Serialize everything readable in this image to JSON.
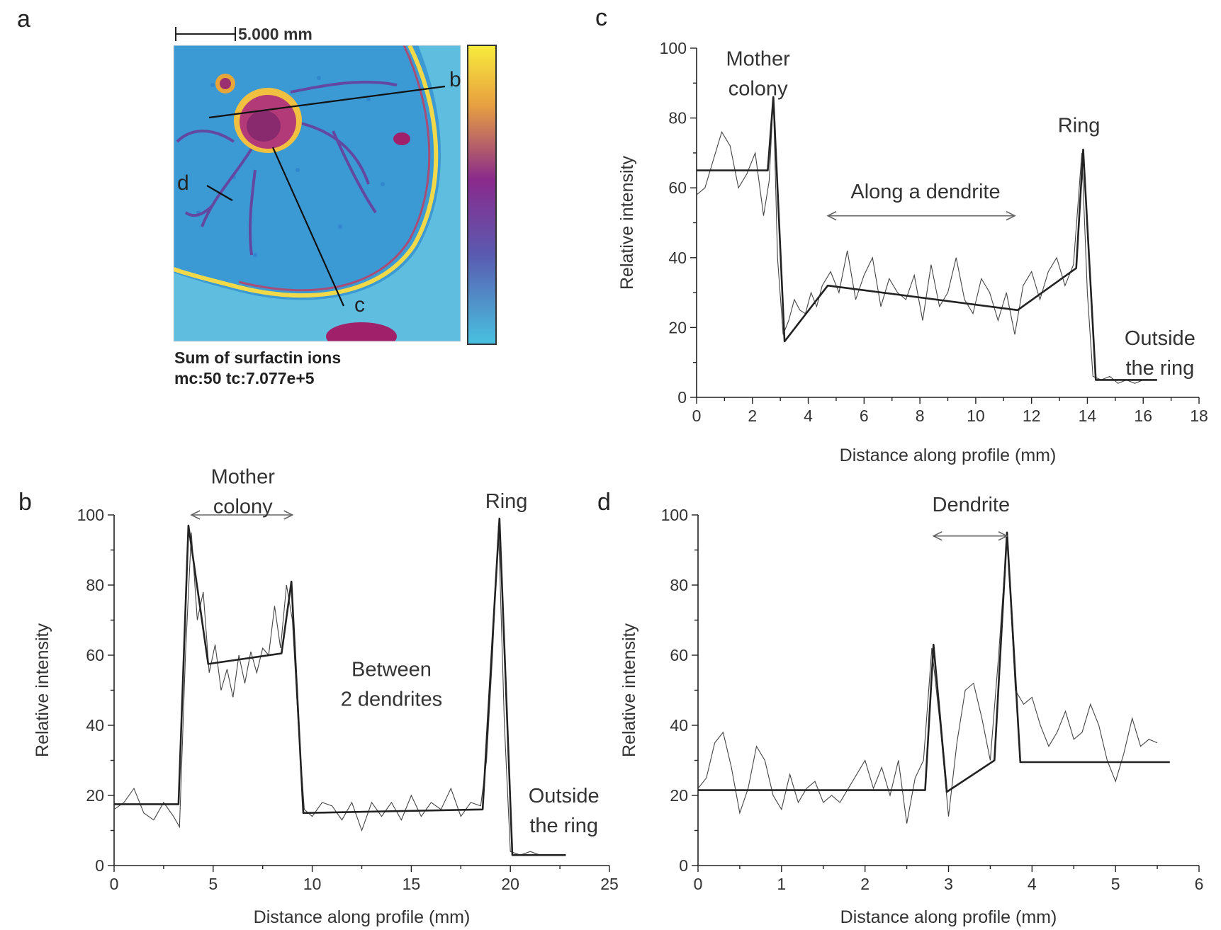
{
  "panel_a": {
    "letter": "a",
    "scale_label": "5.000 mm",
    "profile_labels": [
      "b",
      "c",
      "d"
    ],
    "caption_line1": "Sum of surfactin ions",
    "caption_line2": "mc:50 tc:7.077e+5",
    "colors": {
      "background": "#4fb3d9",
      "colony": "#e8a63a",
      "ring": "#f2d94a",
      "dendrite": "#7a2b7e",
      "colorbar_top": "#f7ec3c",
      "colorbar_mid": "#8a2a8c",
      "colorbar_bottom": "#48c2e0"
    }
  },
  "chart_data": [
    {
      "panel": "c",
      "type": "line",
      "xlabel": "Distance along profile (mm)",
      "ylabel": "Relative intensity",
      "xlim": [
        0,
        18
      ],
      "ylim": [
        0,
        100
      ],
      "xticks": [
        0,
        2,
        4,
        6,
        8,
        10,
        12,
        14,
        16,
        18
      ],
      "yticks": [
        0,
        20,
        40,
        60,
        80,
        100
      ],
      "grid": false,
      "series": [
        {
          "role": "raw",
          "x": [
            0,
            0.3,
            0.6,
            0.9,
            1.2,
            1.5,
            1.8,
            2.1,
            2.4,
            2.6,
            2.75,
            2.9,
            3.1,
            3.3,
            3.5,
            3.7,
            3.9,
            4.1,
            4.3,
            4.5,
            4.8,
            5.1,
            5.4,
            5.7,
            6.0,
            6.3,
            6.6,
            6.9,
            7.2,
            7.5,
            7.8,
            8.1,
            8.4,
            8.7,
            9.0,
            9.3,
            9.6,
            9.9,
            10.2,
            10.5,
            10.8,
            11.1,
            11.4,
            11.7,
            12.0,
            12.3,
            12.6,
            12.9,
            13.2,
            13.5,
            13.8,
            14.0,
            14.2,
            14.5,
            14.8,
            15.1,
            15.4,
            15.7,
            16.0
          ],
          "y": [
            58,
            60,
            68,
            76,
            72,
            60,
            64,
            70,
            52,
            62,
            86,
            40,
            18,
            22,
            28,
            25,
            24,
            30,
            26,
            32,
            36,
            30,
            42,
            28,
            35,
            40,
            26,
            34,
            30,
            28,
            35,
            22,
            38,
            26,
            30,
            40,
            28,
            24,
            34,
            30,
            22,
            30,
            18,
            32,
            36,
            28,
            36,
            40,
            32,
            38,
            70,
            30,
            6,
            5,
            6,
            4,
            5,
            4,
            5
          ]
        },
        {
          "role": "fit",
          "x": [
            0,
            2.55,
            2.75,
            3.15,
            4.7,
            11.5,
            13.6,
            13.85,
            14.3,
            16.5
          ],
          "y": [
            65,
            65,
            86,
            16,
            32,
            25,
            37,
            71,
            5,
            5
          ]
        }
      ],
      "annotations": [
        {
          "text": [
            "Mother",
            "colony"
          ],
          "x": 2.2,
          "y": 95
        },
        {
          "text": [
            "Ring"
          ],
          "x": 13.7,
          "y": 76
        },
        {
          "text": [
            "Along a dendrite"
          ],
          "x": 8.2,
          "y": 57,
          "arrow_from": 4.7,
          "arrow_to": 11.4,
          "arrow_y": 52
        },
        {
          "text": [
            "Outside",
            "the ring"
          ],
          "x": 16.6,
          "y": 15
        }
      ]
    },
    {
      "panel": "b",
      "type": "line",
      "xlabel": "Distance along profile (mm)",
      "ylabel": "Relative intensity",
      "xlim": [
        0,
        25
      ],
      "ylim": [
        0,
        100
      ],
      "xticks": [
        0,
        5,
        10,
        15,
        20,
        25
      ],
      "yticks": [
        0,
        20,
        40,
        60,
        80,
        100
      ],
      "grid": false,
      "series": [
        {
          "role": "raw",
          "x": [
            0,
            0.5,
            1.0,
            1.5,
            2.0,
            2.5,
            3.0,
            3.3,
            3.6,
            3.9,
            4.2,
            4.5,
            4.8,
            5.1,
            5.4,
            5.7,
            6.0,
            6.3,
            6.6,
            6.9,
            7.2,
            7.5,
            7.8,
            8.1,
            8.4,
            8.7,
            9.0,
            9.3,
            9.6,
            10.0,
            10.5,
            11.0,
            11.5,
            12.0,
            12.5,
            13.0,
            13.5,
            14.0,
            14.5,
            15.0,
            15.5,
            16.0,
            16.5,
            17.0,
            17.5,
            18.0,
            18.5,
            18.8,
            19.1,
            19.4,
            19.7,
            20.0,
            20.5,
            21.0,
            21.5,
            22.0,
            22.5
          ],
          "y": [
            16,
            18,
            22,
            15,
            13,
            18,
            14,
            11,
            60,
            95,
            70,
            78,
            55,
            63,
            50,
            56,
            48,
            60,
            52,
            61,
            55,
            62,
            60,
            74,
            62,
            80,
            70,
            40,
            16,
            14,
            18,
            17,
            13,
            18,
            10,
            18,
            14,
            18,
            13,
            20,
            14,
            18,
            16,
            22,
            14,
            18,
            17,
            30,
            60,
            97,
            40,
            4,
            3,
            4,
            3,
            3,
            3
          ]
        },
        {
          "role": "fit",
          "x": [
            0,
            3.25,
            3.75,
            4.75,
            8.45,
            8.95,
            9.55,
            18.6,
            19.45,
            20.1,
            22.8
          ],
          "y": [
            17.5,
            17.5,
            97,
            57.5,
            60.5,
            81,
            15,
            16,
            99,
            3,
            3
          ]
        }
      ],
      "annotations": [
        {
          "text": [
            "Mother",
            "colony"
          ],
          "x": 6.5,
          "y": 109,
          "arrow_from": 3.9,
          "arrow_to": 9.0,
          "arrow_y": 100
        },
        {
          "text": [
            "Ring"
          ],
          "x": 19.8,
          "y": 102
        },
        {
          "text": [
            "Between",
            "2 dendrites"
          ],
          "x": 14.0,
          "y": 54
        },
        {
          "text": [
            "Outside",
            "the ring"
          ],
          "x": 22.7,
          "y": 18
        }
      ]
    },
    {
      "panel": "d",
      "type": "line",
      "xlabel": "Distance along profile (mm)",
      "ylabel": "Relative intensity",
      "xlim": [
        0,
        6
      ],
      "ylim": [
        0,
        100
      ],
      "xticks": [
        0,
        1,
        2,
        3,
        4,
        5,
        6
      ],
      "yticks": [
        0,
        20,
        40,
        60,
        80,
        100
      ],
      "grid": false,
      "series": [
        {
          "role": "raw",
          "x": [
            0,
            0.1,
            0.2,
            0.3,
            0.4,
            0.5,
            0.6,
            0.7,
            0.8,
            0.9,
            1.0,
            1.1,
            1.2,
            1.3,
            1.4,
            1.5,
            1.6,
            1.7,
            1.8,
            1.9,
            2.0,
            2.1,
            2.2,
            2.3,
            2.4,
            2.5,
            2.6,
            2.7,
            2.8,
            2.9,
            3.0,
            3.1,
            3.2,
            3.3,
            3.4,
            3.5,
            3.6,
            3.7,
            3.8,
            3.9,
            4.0,
            4.1,
            4.2,
            4.3,
            4.4,
            4.5,
            4.6,
            4.7,
            4.8,
            4.9,
            5.0,
            5.1,
            5.2,
            5.3,
            5.4,
            5.5
          ],
          "y": [
            22,
            25,
            35,
            38,
            28,
            15,
            22,
            34,
            30,
            20,
            16,
            26,
            18,
            22,
            24,
            18,
            20,
            18,
            22,
            26,
            30,
            22,
            28,
            20,
            30,
            12,
            25,
            30,
            62,
            40,
            14,
            35,
            50,
            52,
            42,
            30,
            60,
            94,
            50,
            46,
            48,
            40,
            34,
            38,
            44,
            36,
            38,
            46,
            40,
            30,
            24,
            32,
            42,
            34,
            36,
            35
          ]
        },
        {
          "role": "fit",
          "x": [
            0,
            2.72,
            2.82,
            2.98,
            3.55,
            3.7,
            3.86,
            5.65
          ],
          "y": [
            21.5,
            21.5,
            63,
            21,
            30,
            95,
            29.5,
            29.5
          ]
        }
      ],
      "annotations": [
        {
          "text": [
            "Dendrite"
          ],
          "x": 3.27,
          "y": 101,
          "arrow_from": 2.82,
          "arrow_to": 3.7,
          "arrow_y": 94
        }
      ]
    }
  ]
}
